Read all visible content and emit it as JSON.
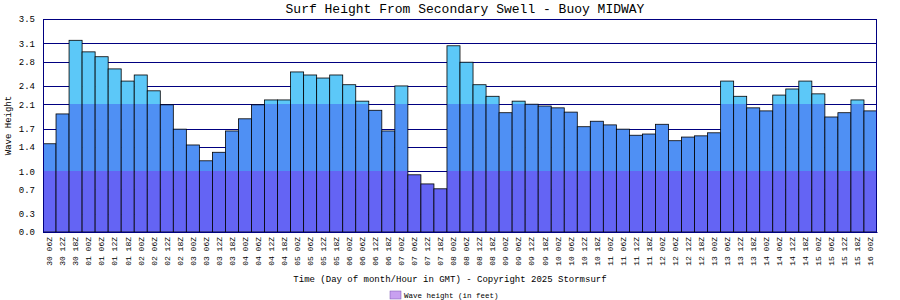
{
  "chart_data": {
    "type": "bar",
    "title": "Surf Height From Secondary Swell - Buoy MIDWAY",
    "x_label": "Time (Day of month/Hour in GMT) - Copyright 2025 Stormsurf",
    "y_label": "Wave Height",
    "categories": [
      "30 06Z",
      "30 12Z",
      "30 18Z",
      "01 00Z",
      "01 06Z",
      "01 12Z",
      "01 18Z",
      "02 00Z",
      "02 06Z",
      "02 12Z",
      "02 18Z",
      "03 00Z",
      "03 06Z",
      "03 12Z",
      "03 18Z",
      "04 00Z",
      "04 06Z",
      "04 12Z",
      "04 18Z",
      "05 00Z",
      "05 06Z",
      "05 12Z",
      "05 18Z",
      "06 00Z",
      "06 06Z",
      "06 12Z",
      "06 18Z",
      "07 00Z",
      "07 06Z",
      "07 12Z",
      "07 18Z",
      "08 00Z",
      "08 06Z",
      "08 12Z",
      "08 18Z",
      "09 00Z",
      "09 06Z",
      "09 12Z",
      "09 18Z",
      "10 00Z",
      "10 06Z",
      "10 12Z",
      "10 18Z",
      "11 00Z",
      "11 06Z",
      "11 12Z",
      "11 18Z",
      "12 00Z",
      "12 06Z",
      "12 12Z",
      "12 18Z",
      "13 00Z",
      "13 06Z",
      "13 12Z",
      "13 18Z",
      "14 00Z",
      "14 06Z",
      "14 12Z",
      "14 18Z",
      "15 00Z",
      "15 06Z",
      "15 12Z",
      "15 18Z",
      "16 00Z"
    ],
    "series": [
      {
        "name": "Wave height (in feet)",
        "values": [
          1.45,
          1.94,
          3.15,
          2.96,
          2.88,
          2.68,
          2.48,
          2.58,
          2.32,
          2.09,
          1.69,
          1.43,
          1.17,
          1.31,
          1.66,
          1.86,
          2.09,
          2.17,
          2.17,
          2.63,
          2.58,
          2.53,
          2.58,
          2.42,
          2.15,
          2.0,
          1.66,
          2.4,
          0.94,
          0.79,
          0.71,
          3.06,
          2.79,
          2.42,
          2.23,
          1.96,
          2.15,
          2.1,
          2.07,
          2.04,
          1.97,
          1.73,
          1.82,
          1.76,
          1.69,
          1.59,
          1.61,
          1.77,
          1.5,
          1.56,
          1.58,
          1.63,
          2.48,
          2.23,
          2.04,
          1.99,
          2.25,
          2.35,
          2.48,
          2.27,
          1.89,
          1.96,
          2.17,
          1.99
        ]
      }
    ],
    "ylim": [
      0,
      3.5
    ],
    "yticks": [
      {
        "value": 0,
        "label": "0.0"
      },
      0.3,
      0.7,
      {
        "value": 1,
        "label": "1.0"
      },
      1.4,
      1.7,
      2.1,
      2.4,
      2.8,
      3.1,
      3.5
    ],
    "grid": true
  }
}
